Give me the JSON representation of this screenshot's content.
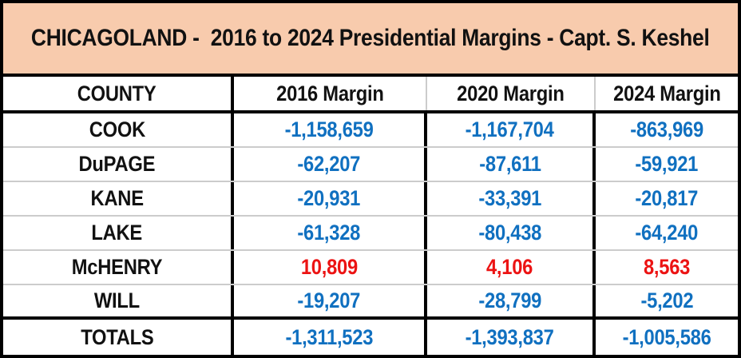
{
  "title": "CHICAGOLAND -  2016 to 2024 Presidential Margins - Capt. S. Keshel",
  "colors": {
    "title_bg": "#F8CBAD",
    "border": "#000000",
    "row_divider": "#CCCCCC",
    "negative_value": "#1070C0",
    "positive_value": "#EC1313"
  },
  "chart_data": {
    "type": "table",
    "title": "CHICAGOLAND -  2016 to 2024 Presidential Margins - Capt. S. Keshel",
    "columns": [
      "COUNTY",
      "2016 Margin",
      "2020 Margin",
      "2024 Margin"
    ],
    "rows": [
      {
        "county": "COOK",
        "values": [
          "-1,158,659",
          "-1,167,704",
          "-863,969"
        ]
      },
      {
        "county": "DuPAGE",
        "values": [
          "-62,207",
          "-87,611",
          "-59,921"
        ]
      },
      {
        "county": "KANE",
        "values": [
          "-20,931",
          "-33,391",
          "-20,817"
        ]
      },
      {
        "county": "LAKE",
        "values": [
          "-61,328",
          "-80,438",
          "-64,240"
        ]
      },
      {
        "county": "McHENRY",
        "values": [
          "10,809",
          "4,106",
          "8,563"
        ]
      },
      {
        "county": "WILL",
        "values": [
          "-19,207",
          "-28,799",
          "-5,202"
        ]
      }
    ],
    "totals": {
      "label": "TOTALS",
      "values": [
        "-1,311,523",
        "-1,393,837",
        "-1,005,586"
      ]
    }
  }
}
